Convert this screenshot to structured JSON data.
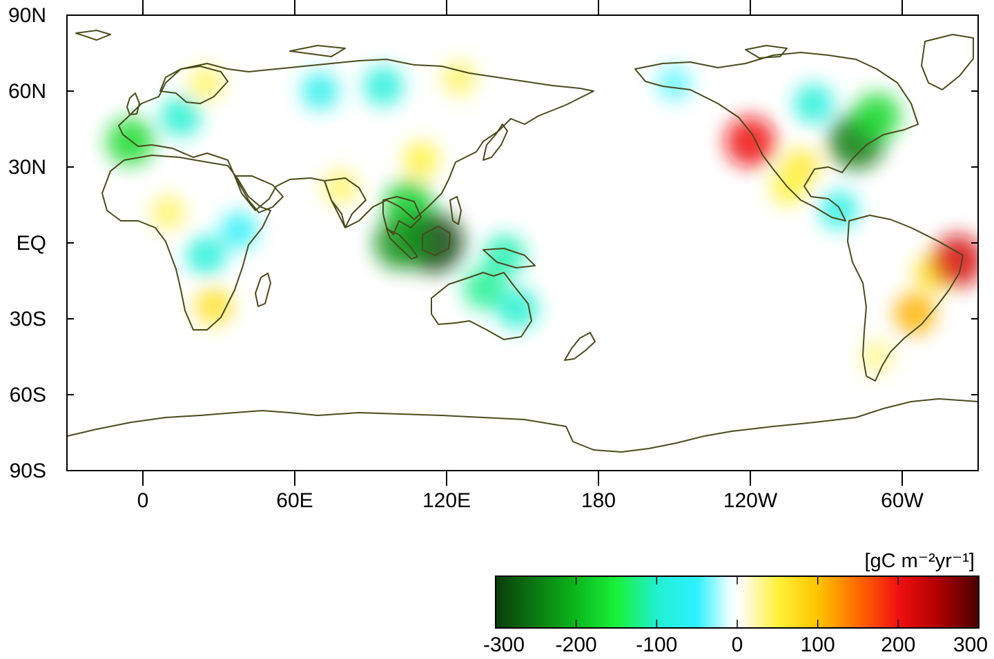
{
  "map": {
    "projection": "equirectangular",
    "lon_range": [
      -30,
      330
    ],
    "lat_range": [
      -90,
      90
    ],
    "lat_ticks": [
      {
        "lat": 90,
        "label": "90N"
      },
      {
        "lat": 60,
        "label": "60N"
      },
      {
        "lat": 30,
        "label": "30N"
      },
      {
        "lat": 0,
        "label": "EQ"
      },
      {
        "lat": -30,
        "label": "30S"
      },
      {
        "lat": -60,
        "label": "60S"
      },
      {
        "lat": -90,
        "label": "90S"
      }
    ],
    "lon_ticks": [
      {
        "lon": 0,
        "label": "0"
      },
      {
        "lon": 60,
        "label": "60E"
      },
      {
        "lon": 120,
        "label": "120E"
      },
      {
        "lon": 180,
        "label": "180"
      },
      {
        "lon": 240,
        "label": "120W"
      },
      {
        "lon": 300,
        "label": "60W"
      }
    ],
    "coastline_color": "#4a4a1a",
    "anomaly_fields": [
      {
        "region": "western-us",
        "lon": 240,
        "lat": 40,
        "value": 200
      },
      {
        "region": "eastern-us",
        "lon": 282,
        "lat": 40,
        "value": -250
      },
      {
        "region": "northeast-canada",
        "lon": 290,
        "lat": 50,
        "value": -170
      },
      {
        "region": "central-canada",
        "lon": 265,
        "lat": 55,
        "value": -90
      },
      {
        "region": "southern-us",
        "lon": 260,
        "lat": 30,
        "value": 60
      },
      {
        "region": "mexico",
        "lon": 255,
        "lat": 22,
        "value": 50
      },
      {
        "region": "central-america",
        "lon": 275,
        "lat": 13,
        "value": -80
      },
      {
        "region": "brazil",
        "lon": 312,
        "lat": -12,
        "value": 70
      },
      {
        "region": "northeast-brazil",
        "lon": 322,
        "lat": -7,
        "value": 220
      },
      {
        "region": "south-brazil",
        "lon": 305,
        "lat": -28,
        "value": 110
      },
      {
        "region": "patagonia",
        "lon": 290,
        "lat": -45,
        "value": 30
      },
      {
        "region": "southeast-asia",
        "lon": 105,
        "lat": 15,
        "value": -180
      },
      {
        "region": "borneo",
        "lon": 115,
        "lat": 0,
        "value": -290
      },
      {
        "region": "sumatra",
        "lon": 102,
        "lat": 0,
        "value": -230
      },
      {
        "region": "new-guinea",
        "lon": 143,
        "lat": -5,
        "value": -110
      },
      {
        "region": "north-australia",
        "lon": 135,
        "lat": -18,
        "value": -120
      },
      {
        "region": "east-australia",
        "lon": 148,
        "lat": -26,
        "value": -100
      },
      {
        "region": "india",
        "lon": 78,
        "lat": 22,
        "value": 40
      },
      {
        "region": "china",
        "lon": 110,
        "lat": 33,
        "value": 50
      },
      {
        "region": "siberia",
        "lon": 95,
        "lat": 62,
        "value": -90
      },
      {
        "region": "west-siberia",
        "lon": 70,
        "lat": 60,
        "value": -70
      },
      {
        "region": "east-siberia",
        "lon": 125,
        "lat": 65,
        "value": 40
      },
      {
        "region": "europe",
        "lon": 15,
        "lat": 50,
        "value": -100
      },
      {
        "region": "iberia",
        "lon": -5,
        "lat": 40,
        "value": -170
      },
      {
        "region": "scandinavia",
        "lon": 25,
        "lat": 63,
        "value": 40
      },
      {
        "region": "central-africa",
        "lon": 25,
        "lat": -5,
        "value": -90
      },
      {
        "region": "east-africa",
        "lon": 38,
        "lat": 5,
        "value": -60
      },
      {
        "region": "southern-africa",
        "lon": 28,
        "lat": -25,
        "value": 70
      },
      {
        "region": "sahel",
        "lon": 10,
        "lat": 12,
        "value": 40
      },
      {
        "region": "alaska",
        "lon": 210,
        "lat": 63,
        "value": -40
      }
    ]
  },
  "colorbar": {
    "unit": "[gC m⁻²yr⁻¹]",
    "min": -300,
    "max": 300,
    "tick_values": [
      -300,
      -200,
      -100,
      0,
      100,
      200,
      300
    ],
    "tick_labels": [
      "-300",
      "-200",
      "-100",
      "0",
      "100",
      "200",
      "300"
    ],
    "stops": [
      {
        "v": -300,
        "c": "#0a3d0a"
      },
      {
        "v": -250,
        "c": "#0b7a12"
      },
      {
        "v": -200,
        "c": "#0ab81c"
      },
      {
        "v": -150,
        "c": "#1af03a"
      },
      {
        "v": -100,
        "c": "#1ff0d0"
      },
      {
        "v": -50,
        "c": "#2ef0ff"
      },
      {
        "v": -10,
        "c": "#e8ffff"
      },
      {
        "v": 0,
        "c": "#ffffff"
      },
      {
        "v": 10,
        "c": "#fffbe0"
      },
      {
        "v": 50,
        "c": "#fff23a"
      },
      {
        "v": 100,
        "c": "#ffc400"
      },
      {
        "v": 150,
        "c": "#ff6a00"
      },
      {
        "v": 200,
        "c": "#f01010"
      },
      {
        "v": 250,
        "c": "#b00000"
      },
      {
        "v": 300,
        "c": "#4a0000"
      }
    ]
  }
}
